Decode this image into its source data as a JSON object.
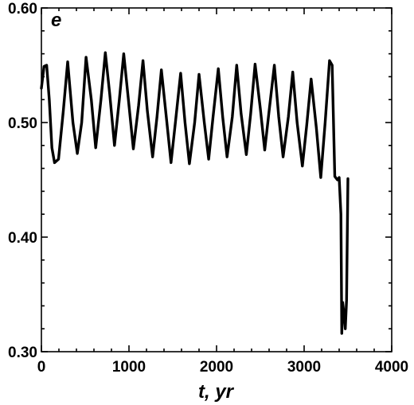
{
  "chart_data": {
    "type": "line",
    "title": "",
    "panel_label": "e",
    "xlabel": "t, yr",
    "ylabel": "",
    "xlim": [
      0,
      4000
    ],
    "ylim": [
      0.3,
      0.6
    ],
    "xticks": [
      0,
      1000,
      2000,
      3000,
      4000
    ],
    "xtick_labels": [
      "0",
      "1000",
      "2000",
      "3000",
      "4000"
    ],
    "yticks": [
      0.3,
      0.4,
      0.5,
      0.6
    ],
    "ytick_labels": [
      "0.30",
      "0.40",
      "0.50",
      "0.60"
    ],
    "grid": false,
    "line_color": "#000000",
    "series": [
      {
        "x": [
          0,
          30,
          60,
          90,
          120,
          150,
          195,
          250,
          300,
          360,
          410,
          460,
          510,
          570,
          620,
          680,
          730,
          780,
          835,
          890,
          940,
          1000,
          1050,
          1110,
          1160,
          1210,
          1270,
          1320,
          1370,
          1430,
          1480,
          1530,
          1590,
          1640,
          1690,
          1750,
          1800,
          1860,
          1910,
          1960,
          2020,
          2070,
          2120,
          2180,
          2230,
          2280,
          2340,
          2390,
          2440,
          2500,
          2550,
          2600,
          2660,
          2710,
          2760,
          2820,
          2870,
          2920,
          2980,
          3030,
          3080,
          3140,
          3190,
          3240,
          3290,
          3320,
          3350,
          3380,
          3400,
          3420,
          3430,
          3440,
          3455,
          3470,
          3485,
          3500
        ],
        "y": [
          0.53,
          0.549,
          0.55,
          0.52,
          0.478,
          0.465,
          0.468,
          0.51,
          0.553,
          0.5,
          0.473,
          0.5,
          0.557,
          0.52,
          0.478,
          0.52,
          0.561,
          0.525,
          0.48,
          0.52,
          0.56,
          0.515,
          0.477,
          0.515,
          0.554,
          0.51,
          0.47,
          0.505,
          0.546,
          0.502,
          0.465,
          0.5,
          0.543,
          0.5,
          0.464,
          0.5,
          0.542,
          0.5,
          0.468,
          0.505,
          0.547,
          0.505,
          0.47,
          0.505,
          0.55,
          0.508,
          0.472,
          0.508,
          0.551,
          0.512,
          0.476,
          0.51,
          0.55,
          0.505,
          0.47,
          0.505,
          0.544,
          0.5,
          0.462,
          0.498,
          0.538,
          0.495,
          0.452,
          0.5,
          0.554,
          0.55,
          0.453,
          0.45,
          0.452,
          0.42,
          0.316,
          0.343,
          0.333,
          0.32,
          0.345,
          0.451
        ]
      }
    ]
  }
}
